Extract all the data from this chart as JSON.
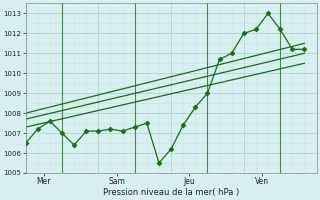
{
  "title": "",
  "xlabel": "Pression niveau de la mer( hPa )",
  "background_color": "#d8efef",
  "grid_color_major": "#b8d8d8",
  "grid_color_minor": "#cce4e4",
  "line_color": "#1a6b1a",
  "vline_color": "#4a8a4a",
  "ylim": [
    1005.0,
    1013.5
  ],
  "yticks": [
    1005,
    1006,
    1007,
    1008,
    1009,
    1010,
    1011,
    1012,
    1013
  ],
  "xlim": [
    0,
    24
  ],
  "day_labels": [
    "Mer",
    "Sam",
    "Jeu",
    "Ven"
  ],
  "day_positions": [
    1.5,
    7.5,
    13.5,
    19.5
  ],
  "vline_positions": [
    3,
    9,
    15,
    21
  ],
  "main_line_x": [
    0,
    1,
    2,
    3,
    4,
    5,
    6,
    7,
    8,
    9,
    10,
    11,
    12,
    13,
    14,
    15,
    16,
    17,
    18,
    19,
    20,
    21,
    22,
    23
  ],
  "main_line_y": [
    1006.5,
    1007.2,
    1007.6,
    1007.0,
    1006.4,
    1007.1,
    1007.1,
    1007.2,
    1007.1,
    1007.3,
    1007.5,
    1005.5,
    1006.2,
    1007.4,
    1008.3,
    1009.0,
    1010.7,
    1011.0,
    1012.0,
    1012.2,
    1013.0,
    1012.2,
    1011.2,
    1011.2
  ],
  "trend1_x": [
    0,
    23
  ],
  "trend1_y": [
    1007.3,
    1010.5
  ],
  "trend2_x": [
    0,
    23
  ],
  "trend2_y": [
    1007.7,
    1011.0
  ],
  "trend3_x": [
    0,
    23
  ],
  "trend3_y": [
    1008.0,
    1011.5
  ]
}
